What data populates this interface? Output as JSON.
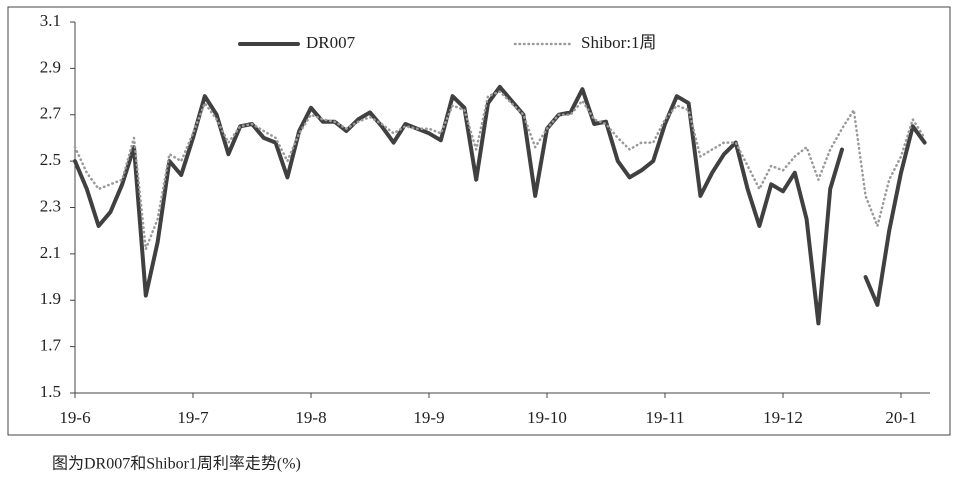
{
  "chart_data": {
    "type": "line",
    "caption": "图为DR007和Shibor1周利率走势(%)",
    "categories": [
      "19-6",
      null,
      null,
      null,
      null,
      null,
      null,
      null,
      null,
      null,
      "19-7",
      null,
      null,
      null,
      null,
      null,
      null,
      null,
      null,
      null,
      "19-8",
      null,
      null,
      null,
      null,
      null,
      null,
      null,
      null,
      null,
      "19-9",
      null,
      null,
      null,
      null,
      null,
      null,
      null,
      null,
      null,
      "19-10",
      null,
      null,
      null,
      null,
      null,
      null,
      null,
      null,
      null,
      "19-11",
      null,
      null,
      null,
      null,
      null,
      null,
      null,
      null,
      null,
      "19-12",
      null,
      null,
      null,
      null,
      null,
      null,
      null,
      null,
      null,
      "20-1",
      null,
      null
    ],
    "series": [
      {
        "name": "DR007",
        "color": "#404040",
        "style": "solid",
        "values": [
          2.5,
          2.38,
          2.22,
          2.28,
          2.4,
          2.56,
          1.92,
          2.15,
          2.5,
          2.44,
          2.6,
          2.78,
          2.7,
          2.53,
          2.65,
          2.66,
          2.6,
          2.58,
          2.43,
          2.63,
          2.73,
          2.67,
          2.67,
          2.63,
          2.68,
          2.71,
          2.65,
          2.58,
          2.66,
          2.64,
          2.62,
          2.59,
          2.78,
          2.73,
          2.42,
          2.75,
          2.82,
          2.76,
          2.7,
          2.35,
          2.64,
          2.7,
          2.71,
          2.81,
          2.66,
          2.67,
          2.5,
          2.43,
          2.46,
          2.5,
          2.66,
          2.78,
          2.75,
          2.35,
          2.45,
          2.53,
          2.58,
          2.38,
          2.22,
          2.4,
          2.37,
          2.45,
          2.25,
          1.8,
          2.38,
          2.55,
          null,
          2.0,
          1.88,
          2.2,
          2.45,
          2.65,
          2.58
        ]
      },
      {
        "name": "Shibor:1周",
        "color": "#9a9a9a",
        "style": "dotted",
        "values": [
          2.56,
          2.45,
          2.38,
          2.4,
          2.42,
          2.6,
          2.12,
          2.25,
          2.53,
          2.5,
          2.62,
          2.75,
          2.68,
          2.58,
          2.65,
          2.66,
          2.63,
          2.6,
          2.5,
          2.62,
          2.7,
          2.68,
          2.67,
          2.64,
          2.67,
          2.69,
          2.66,
          2.62,
          2.65,
          2.64,
          2.64,
          2.62,
          2.74,
          2.72,
          2.55,
          2.78,
          2.8,
          2.75,
          2.7,
          2.56,
          2.64,
          2.7,
          2.7,
          2.76,
          2.68,
          2.66,
          2.6,
          2.55,
          2.58,
          2.58,
          2.68,
          2.74,
          2.72,
          2.52,
          2.55,
          2.58,
          2.58,
          2.48,
          2.38,
          2.48,
          2.46,
          2.52,
          2.56,
          2.42,
          2.55,
          2.64,
          2.72,
          2.35,
          2.22,
          2.42,
          2.52,
          2.68,
          2.6
        ]
      }
    ],
    "ylim": [
      1.5,
      3.1
    ],
    "yticks": [
      1.5,
      1.7,
      1.9,
      2.1,
      2.3,
      2.5,
      2.7,
      2.9,
      3.1
    ],
    "grid": false
  }
}
